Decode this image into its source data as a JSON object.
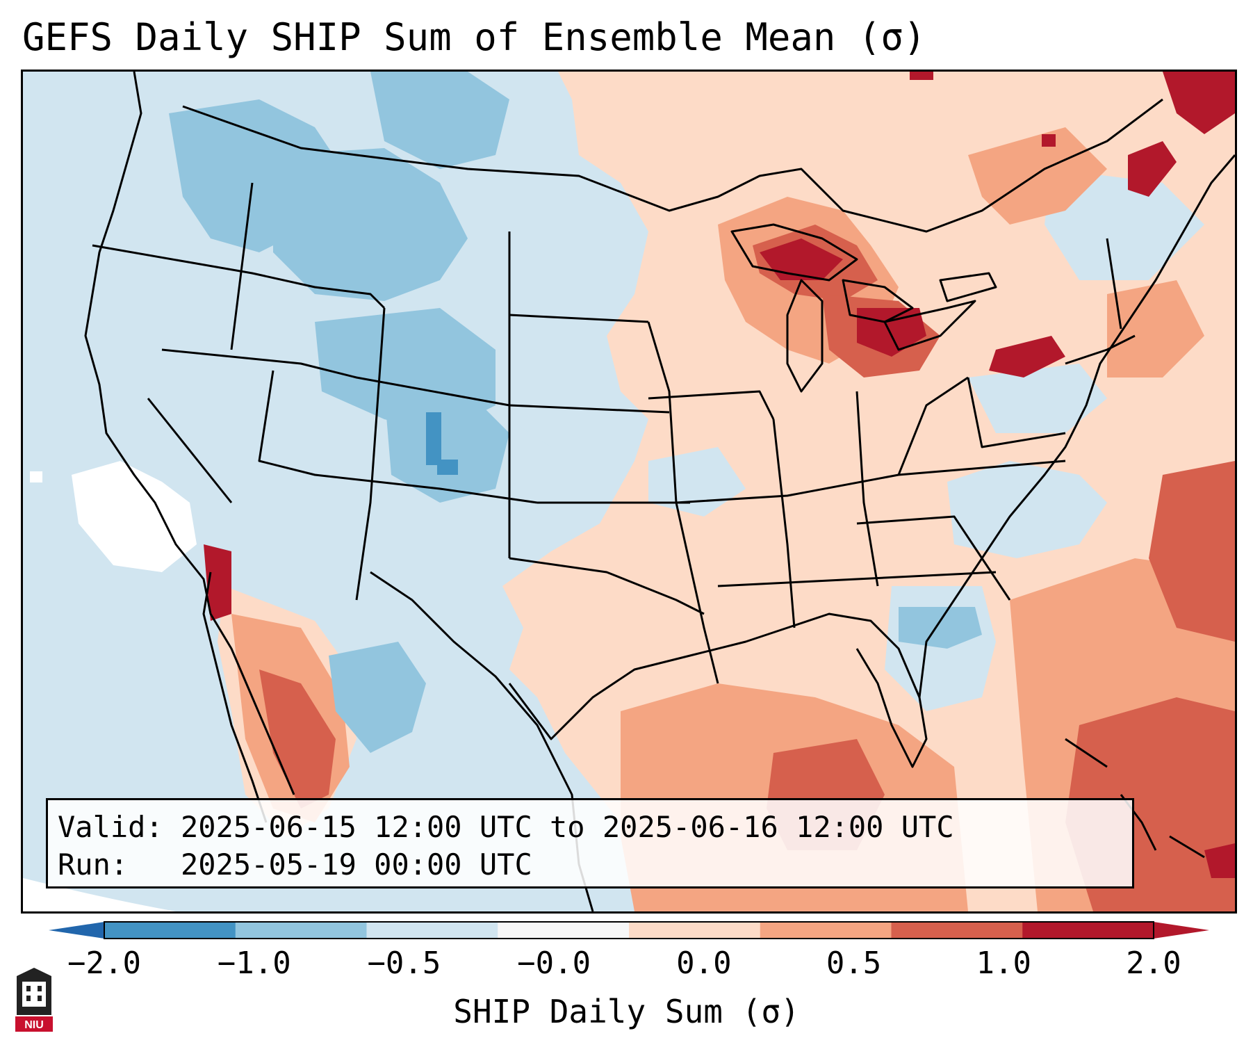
{
  "title": "GEFS Daily SHIP Sum of Ensemble Mean (σ)",
  "info": {
    "valid_label": "Valid:",
    "valid_value": "2025-06-15 12:00 UTC to 2025-06-16 12:00 UTC",
    "run_label": "Run:",
    "run_value": "2025-05-19 00:00 UTC"
  },
  "colorbar": {
    "label": "SHIP Daily Sum (σ)",
    "ticks": [
      "−2.0",
      "−1.0",
      "−0.5",
      "−0.0",
      "0.0",
      "0.5",
      "1.0",
      "2.0"
    ],
    "colors": [
      "#4393c3",
      "#92c5de",
      "#d1e5f0",
      "#f7f7f7",
      "#fddbc7",
      "#f4a582",
      "#d6604d",
      "#b2182b"
    ],
    "under_color": "#2166ac",
    "over_color": "#b2182b"
  },
  "logo": {
    "text": "NIU",
    "icon": "university-seal-icon"
  }
}
